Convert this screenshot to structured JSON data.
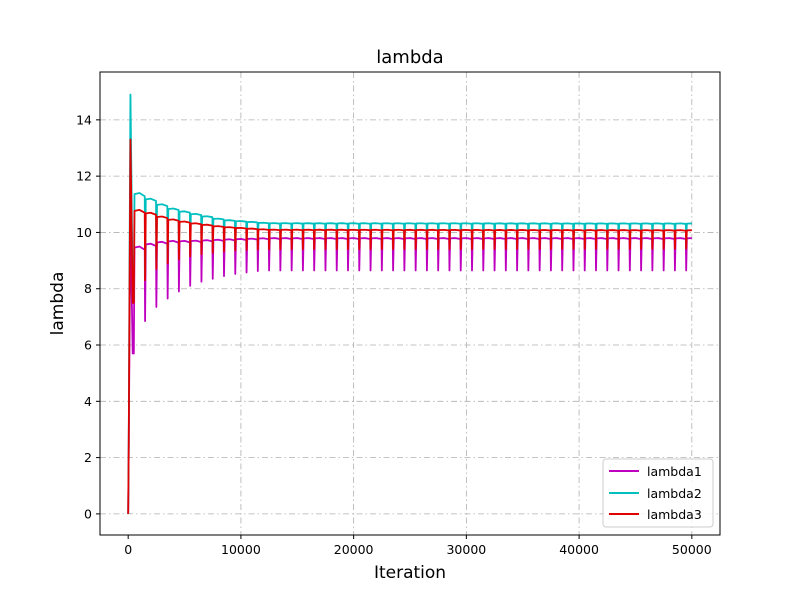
{
  "chart_data": {
    "type": "line",
    "title": "lambda",
    "xlabel": "Iteration",
    "ylabel": "lambda",
    "xlim": [
      -2500,
      52500
    ],
    "ylim": [
      -0.75,
      15.7
    ],
    "xticks": [
      0,
      10000,
      20000,
      30000,
      40000,
      50000
    ],
    "xtick_labels": [
      "0",
      "10000",
      "20000",
      "30000",
      "40000",
      "50000"
    ],
    "yticks": [
      0,
      2,
      4,
      6,
      8,
      10,
      12,
      14
    ],
    "ytick_labels": [
      "0",
      "2",
      "4",
      "6",
      "8",
      "10",
      "12",
      "14"
    ],
    "grid": true,
    "legend_position": "lower-right",
    "period": 1000,
    "x_end": 50000,
    "series": [
      {
        "name": "lambda1",
        "color": "#bf00bf",
        "spike_peak": 10.5,
        "first_trough": 5.7,
        "early_peaks": [
          [
            500,
            9.5
          ],
          [
            1500,
            9.6
          ],
          [
            3000,
            9.7
          ],
          [
            5000,
            9.7
          ],
          [
            8000,
            9.75
          ],
          [
            12000,
            9.8
          ],
          [
            50000,
            9.8
          ]
        ],
        "troughs": [
          [
            500,
            5.7
          ],
          [
            1000,
            6.5
          ],
          [
            2000,
            7.2
          ],
          [
            4000,
            7.8
          ],
          [
            6000,
            8.2
          ],
          [
            9000,
            8.5
          ],
          [
            12000,
            8.65
          ],
          [
            50000,
            8.65
          ]
        ]
      },
      {
        "name": "lambda2",
        "color": "#00bfbf",
        "spike_peak": 14.9,
        "first_trough": 7.6,
        "early_peaks": [
          [
            500,
            11.4
          ],
          [
            1500,
            11.2
          ],
          [
            3000,
            10.9
          ],
          [
            5000,
            10.7
          ],
          [
            8000,
            10.45
          ],
          [
            12000,
            10.33
          ],
          [
            50000,
            10.32
          ]
        ],
        "troughs": [
          [
            500,
            7.6
          ],
          [
            1000,
            8.2
          ],
          [
            2000,
            8.8
          ],
          [
            4000,
            9.2
          ],
          [
            6000,
            9.45
          ],
          [
            9000,
            9.6
          ],
          [
            12000,
            9.7
          ],
          [
            50000,
            9.7
          ]
        ]
      },
      {
        "name": "lambda3",
        "color": "#e00000",
        "spike_peak": 13.3,
        "first_trough": 7.5,
        "early_peaks": [
          [
            500,
            10.8
          ],
          [
            1500,
            10.7
          ],
          [
            3000,
            10.5
          ],
          [
            5000,
            10.35
          ],
          [
            8000,
            10.2
          ],
          [
            12000,
            10.1
          ],
          [
            50000,
            10.08
          ]
        ],
        "troughs": [
          [
            500,
            7.5
          ],
          [
            1000,
            8.0
          ],
          [
            2000,
            8.6
          ],
          [
            4000,
            9.0
          ],
          [
            6000,
            9.2
          ],
          [
            9000,
            9.35
          ],
          [
            12000,
            9.4
          ],
          [
            50000,
            9.42
          ]
        ]
      }
    ]
  }
}
